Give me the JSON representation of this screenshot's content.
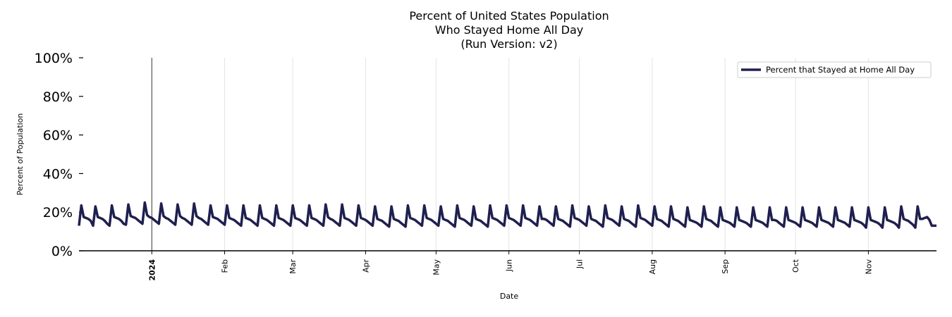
{
  "chart_data": {
    "type": "line",
    "title": [
      "Percent of United States Population",
      "Who Stayed Home All Day",
      "(Run Version: v2)"
    ],
    "xlabel": "Date",
    "ylabel": "Percent of Population",
    "ylim": [
      0,
      100
    ],
    "yticks": [
      "0%",
      "20%",
      "40%",
      "60%",
      "80%",
      "100%"
    ],
    "ytick_values": [
      0,
      20,
      40,
      60,
      80,
      100
    ],
    "xlim": [
      "2023-12-01",
      "2024-11-30"
    ],
    "xticks": [
      {
        "date": "2024-01-01",
        "label": "2024",
        "bold": true
      },
      {
        "date": "2024-02-01",
        "label": "Feb"
      },
      {
        "date": "2024-03-01",
        "label": "Mar"
      },
      {
        "date": "2024-04-01",
        "label": "Apr"
      },
      {
        "date": "2024-05-01",
        "label": "May"
      },
      {
        "date": "2024-06-01",
        "label": "Jun"
      },
      {
        "date": "2024-07-01",
        "label": "Jul"
      },
      {
        "date": "2024-08-01",
        "label": "Aug"
      },
      {
        "date": "2024-09-01",
        "label": "Sep"
      },
      {
        "date": "2024-10-01",
        "label": "Oct"
      },
      {
        "date": "2024-11-01",
        "label": "Nov"
      }
    ],
    "grid": "vertical, monthly",
    "legend_placement": "top-right",
    "series": [
      {
        "name": "Percent that Stayed at Home All Day",
        "color": "#1f1f4f",
        "x_start": "2023-12-01",
        "frequency": "daily",
        "values": [
          13.0,
          23.5,
          17.5,
          17.0,
          16.5,
          15.5,
          13.0,
          23.0,
          17.5,
          17.0,
          16.5,
          15.5,
          14.0,
          13.0,
          23.5,
          17.5,
          17.0,
          16.5,
          15.5,
          14.0,
          13.5,
          24.0,
          18.0,
          17.5,
          17.0,
          16.0,
          15.0,
          14.0,
          25.0,
          18.5,
          17.5,
          17.0,
          16.0,
          15.0,
          14.0,
          24.5,
          18.0,
          17.0,
          16.5,
          15.5,
          14.5,
          13.5,
          24.0,
          18.0,
          17.0,
          16.5,
          15.5,
          14.5,
          13.5,
          24.5,
          18.0,
          17.0,
          16.5,
          15.5,
          14.5,
          13.5,
          23.5,
          17.5,
          17.0,
          16.5,
          15.5,
          14.5,
          13.5,
          23.5,
          17.0,
          16.5,
          16.0,
          15.0,
          14.0,
          13.0,
          23.5,
          17.0,
          16.5,
          16.0,
          15.0,
          14.0,
          13.0,
          23.5,
          17.0,
          16.5,
          16.0,
          15.0,
          14.0,
          13.0,
          23.5,
          17.0,
          16.5,
          16.0,
          15.0,
          14.0,
          13.0,
          23.5,
          17.0,
          16.5,
          16.0,
          15.0,
          14.0,
          13.0,
          23.5,
          17.0,
          16.5,
          16.0,
          15.0,
          14.0,
          13.0,
          24.0,
          17.5,
          16.5,
          16.0,
          15.0,
          14.0,
          13.0,
          24.0,
          17.0,
          16.5,
          16.0,
          15.0,
          14.0,
          13.0,
          23.5,
          17.0,
          16.5,
          16.0,
          15.0,
          14.0,
          13.0,
          23.0,
          16.5,
          16.0,
          15.5,
          14.5,
          13.5,
          12.5,
          23.0,
          16.5,
          16.0,
          15.5,
          14.5,
          13.5,
          12.5,
          23.5,
          17.0,
          16.5,
          16.0,
          15.0,
          14.0,
          13.0,
          23.5,
          17.0,
          16.5,
          16.0,
          15.0,
          14.0,
          13.0,
          23.0,
          16.5,
          16.0,
          15.5,
          14.5,
          13.5,
          12.5,
          23.5,
          17.0,
          16.5,
          16.0,
          15.0,
          14.0,
          13.0,
          23.0,
          16.5,
          16.0,
          15.5,
          14.5,
          13.5,
          12.5,
          23.5,
          17.0,
          16.5,
          16.0,
          15.0,
          14.0,
          13.0,
          23.5,
          17.0,
          16.5,
          16.0,
          15.0,
          14.0,
          13.0,
          23.5,
          17.0,
          16.5,
          16.0,
          15.0,
          14.0,
          13.0,
          23.0,
          16.5,
          16.5,
          16.0,
          15.0,
          14.0,
          13.0,
          23.0,
          16.5,
          16.0,
          15.5,
          14.5,
          13.5,
          12.5,
          23.5,
          17.0,
          16.5,
          16.0,
          15.0,
          14.0,
          13.0,
          23.0,
          16.5,
          16.0,
          15.5,
          14.5,
          13.5,
          12.5,
          23.5,
          17.0,
          16.5,
          16.0,
          15.0,
          14.0,
          13.0,
          23.0,
          16.5,
          16.0,
          15.5,
          14.5,
          13.5,
          12.5,
          23.5,
          17.0,
          16.5,
          16.0,
          15.0,
          14.0,
          13.0,
          23.0,
          16.5,
          16.0,
          15.5,
          14.5,
          13.5,
          12.5,
          23.0,
          16.5,
          16.0,
          15.5,
          14.5,
          13.5,
          12.5,
          22.5,
          16.0,
          15.5,
          15.0,
          14.5,
          13.5,
          12.5,
          23.0,
          16.5,
          16.0,
          15.5,
          14.5,
          13.5,
          12.5,
          22.5,
          16.0,
          15.5,
          15.0,
          14.5,
          13.5,
          12.5,
          22.5,
          16.0,
          15.5,
          15.0,
          14.5,
          13.5,
          12.5,
          22.5,
          16.0,
          15.5,
          15.0,
          14.5,
          13.5,
          12.5,
          22.5,
          16.0,
          16.0,
          15.5,
          14.5,
          13.5,
          12.5,
          22.5,
          16.0,
          15.5,
          15.0,
          14.5,
          13.5,
          12.5,
          22.5,
          16.0,
          15.5,
          15.0,
          14.5,
          13.5,
          12.5,
          22.5,
          16.0,
          15.5,
          15.0,
          14.5,
          13.5,
          12.5,
          22.5,
          16.0,
          15.5,
          15.0,
          14.5,
          13.5,
          12.5,
          22.5,
          16.0,
          15.5,
          15.0,
          14.5,
          13.5,
          12.0,
          22.5,
          16.0,
          15.5,
          15.0,
          14.5,
          13.5,
          12.0,
          22.5,
          16.0,
          15.5,
          15.0,
          14.5,
          13.5,
          12.0,
          23.0,
          16.5,
          16.0,
          15.5,
          14.5,
          13.5,
          12.0,
          23.0,
          16.5,
          16.5,
          17.0,
          17.5,
          16.0,
          13.0,
          13.0,
          13.0
        ]
      }
    ]
  }
}
